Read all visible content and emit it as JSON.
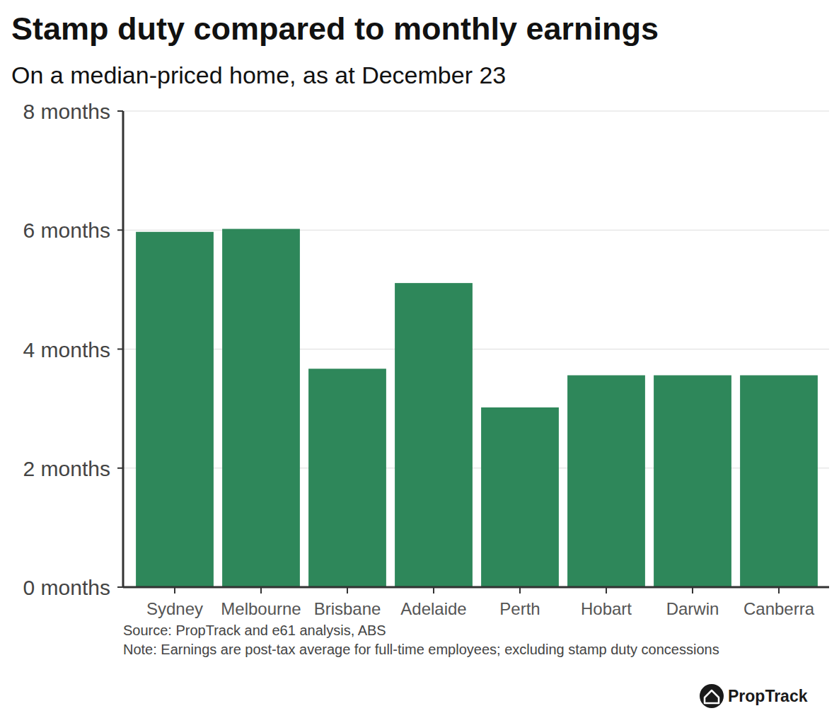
{
  "chart_data": {
    "type": "bar",
    "title": "Stamp duty compared to monthly earnings",
    "subtitle": "On a median-priced home, as at December 23",
    "categories": [
      "Sydney",
      "Melbourne",
      "Brisbane",
      "Adelaide",
      "Perth",
      "Hobart",
      "Darwin",
      "Canberra"
    ],
    "values": [
      5.97,
      6.02,
      3.67,
      5.11,
      3.02,
      3.56,
      3.56,
      3.56
    ],
    "color": "#2e875a",
    "ylim": [
      0,
      8
    ],
    "yticks": [
      {
        "value": 0,
        "label": "0 months"
      },
      {
        "value": 2,
        "label": "2 months"
      },
      {
        "value": 4,
        "label": "4 months"
      },
      {
        "value": 6,
        "label": "6 months"
      },
      {
        "value": 8,
        "label": "8 months"
      }
    ],
    "grid": true,
    "source": "Source: PropTrack and e61 analysis, ABS",
    "note": "Note: Earnings are post-tax average for full-time employees; excluding stamp duty concessions",
    "brand": "PropTrack"
  }
}
